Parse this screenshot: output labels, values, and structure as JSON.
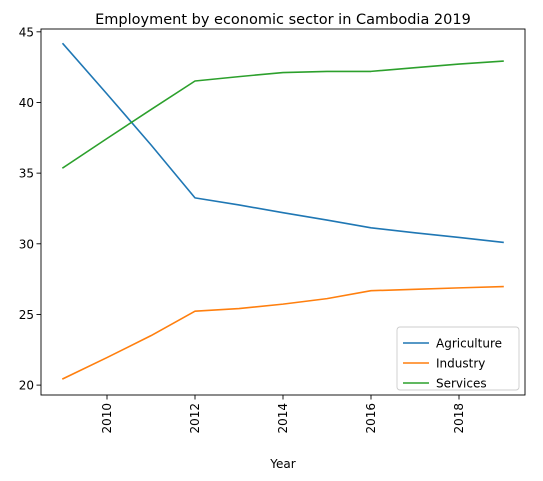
{
  "chart_data": {
    "type": "line",
    "title": "Employment by economic sector in Cambodia 2019",
    "xlabel": "Year",
    "ylabel": "",
    "x": [
      2009,
      2010,
      2011,
      2012,
      2013,
      2014,
      2015,
      2016,
      2017,
      2018,
      2019
    ],
    "xlim": [
      2008.5,
      2019.5
    ],
    "ylim": [
      19.3,
      45.2
    ],
    "xticks": [
      2010,
      2012,
      2014,
      2016,
      2018
    ],
    "xtick_labels": [
      "2010",
      "2012",
      "2014",
      "2016",
      "2018"
    ],
    "xtick_rotation": 90,
    "yticks": [
      20,
      25,
      30,
      35,
      40,
      45
    ],
    "ytick_labels": [
      "20",
      "25",
      "30",
      "35",
      "40",
      "45"
    ],
    "grid": false,
    "legend_position": "bottom-right",
    "series": [
      {
        "name": "Agriculture",
        "color": "#1f77b4",
        "values": [
          44.15,
          40.6,
          37.0,
          33.25,
          32.75,
          32.2,
          31.68,
          31.13,
          30.78,
          30.45,
          30.1
        ]
      },
      {
        "name": "Industry",
        "color": "#ff7f0e",
        "values": [
          20.45,
          21.95,
          23.5,
          25.23,
          25.42,
          25.73,
          26.12,
          26.68,
          26.78,
          26.88,
          26.97
        ]
      },
      {
        "name": "Services",
        "color": "#2ca02c",
        "values": [
          35.38,
          37.45,
          39.5,
          41.52,
          41.83,
          42.12,
          42.2,
          42.2,
          42.46,
          42.72,
          42.93
        ]
      }
    ]
  }
}
